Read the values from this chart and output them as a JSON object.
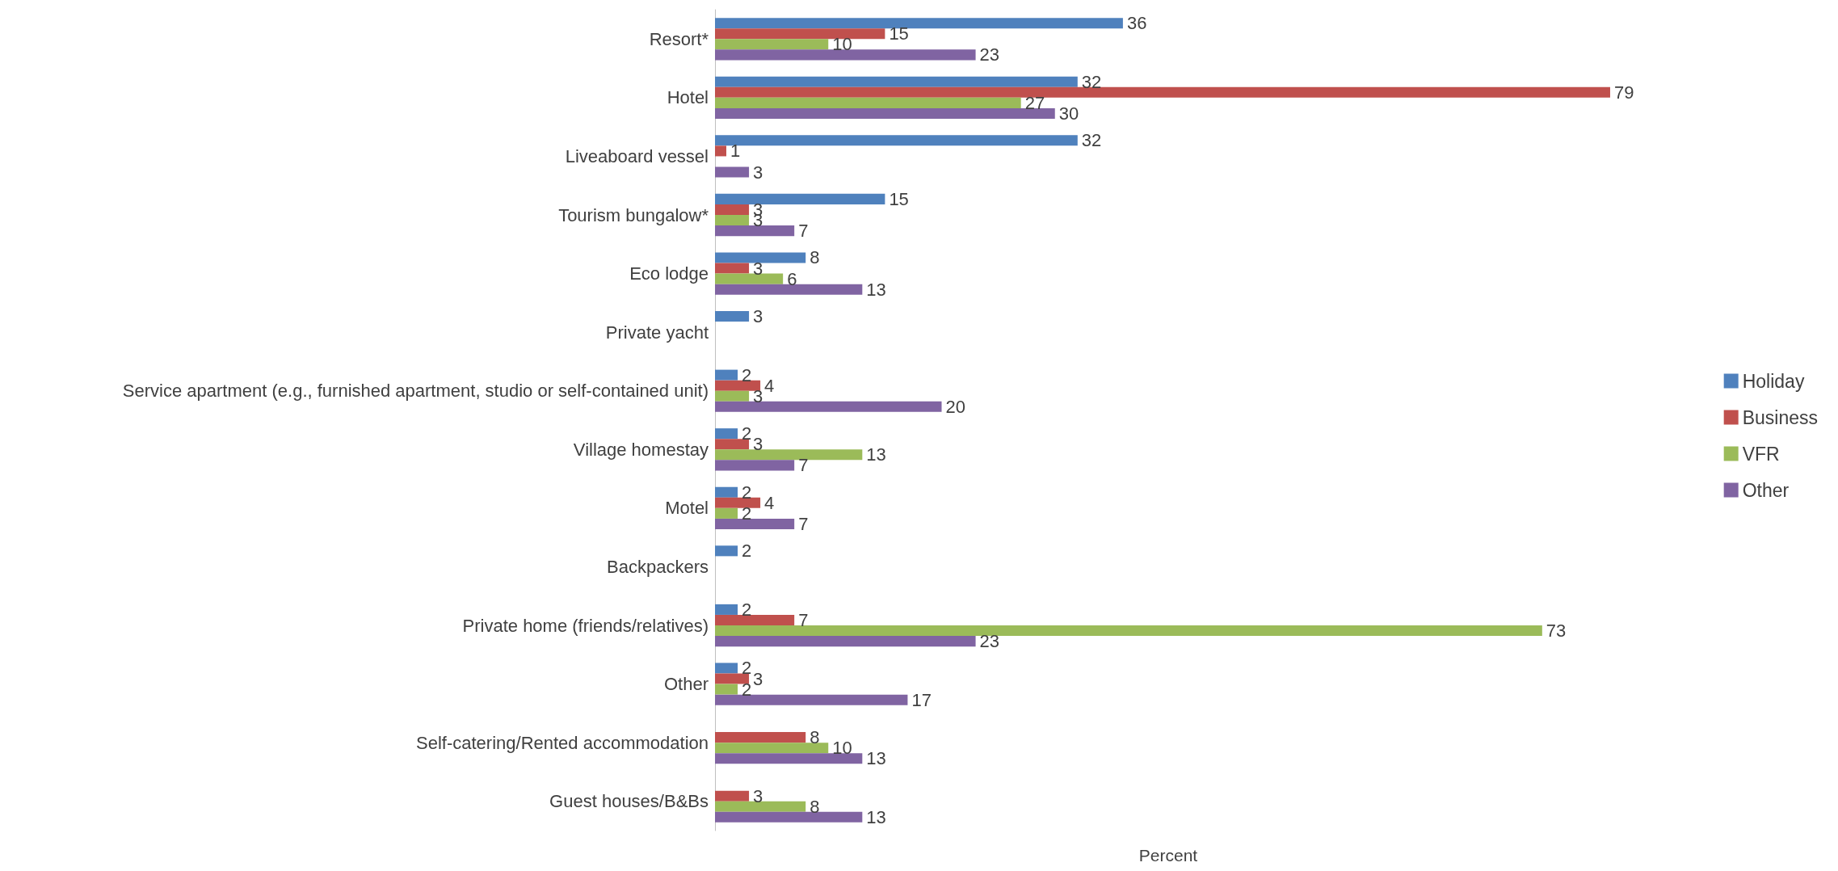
{
  "chart_data": {
    "type": "bar",
    "orientation": "horizontal",
    "xlabel": "Percent",
    "categories": [
      "Resort*",
      "Hotel",
      "Liveaboard vessel",
      "Tourism bungalow*",
      "Eco lodge",
      "Private yacht",
      "Service apartment (e.g., furnished apartment, studio or self-contained unit)",
      "Village homestay",
      "Motel",
      "Backpackers",
      "Private home (friends/relatives)",
      "Other",
      "Self-catering/Rented accommodation",
      "Guest houses/B&Bs"
    ],
    "series": [
      {
        "name": "Holiday",
        "color": "#4f81bd",
        "values": [
          36,
          32,
          32,
          15,
          8,
          3,
          2,
          2,
          2,
          2,
          2,
          2,
          null,
          null
        ]
      },
      {
        "name": "Business",
        "color": "#c0504d",
        "values": [
          15,
          79,
          1,
          3,
          3,
          null,
          4,
          3,
          4,
          null,
          7,
          3,
          8,
          3
        ]
      },
      {
        "name": "VFR",
        "color": "#9bbb59",
        "values": [
          10,
          27,
          null,
          3,
          6,
          null,
          3,
          13,
          2,
          null,
          73,
          2,
          10,
          8
        ]
      },
      {
        "name": "Other",
        "color": "#8064a2",
        "values": [
          23,
          30,
          3,
          7,
          13,
          null,
          20,
          7,
          7,
          null,
          23,
          17,
          13,
          13
        ]
      }
    ],
    "data_labels": true,
    "legend": "right",
    "grid": false,
    "tick_labels": "y"
  }
}
